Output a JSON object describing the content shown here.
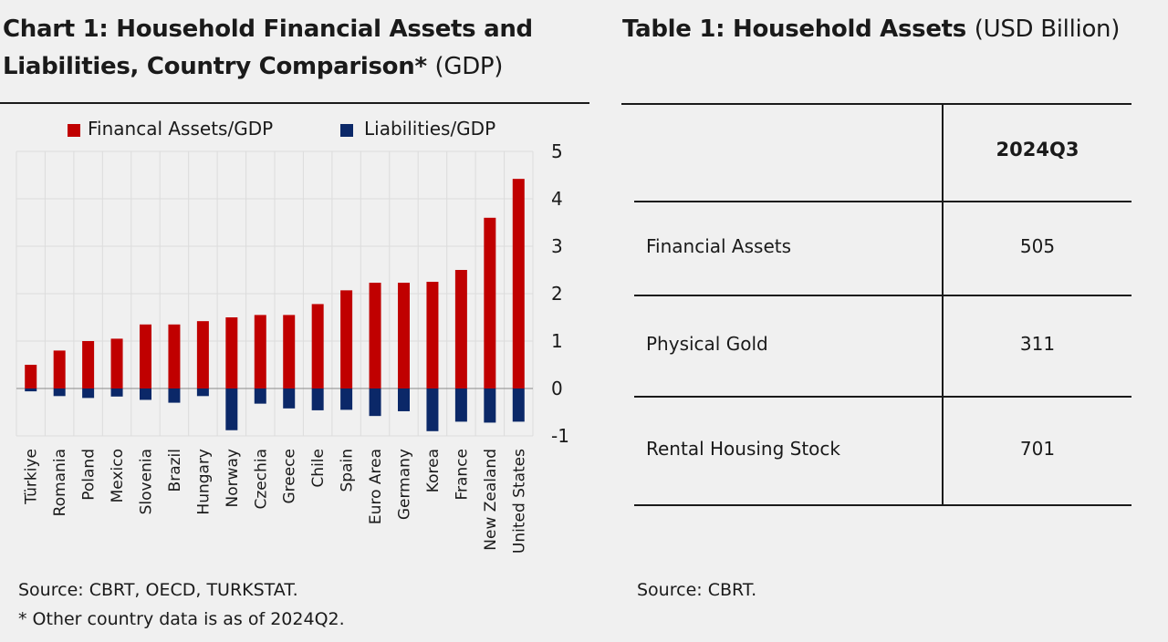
{
  "chart_title": {
    "bold": "Chart 1: Household Financial Assets and",
    "bold2": "Liabilities, Country Comparison*",
    "unit": "(GDP)"
  },
  "table_title": {
    "bold": "Table 1: Household Assets",
    "unit": "(USD Billion)"
  },
  "colors": {
    "assets": "#c00000",
    "liabilities": "#0b2868",
    "grid": "#dcdcdc"
  },
  "chart_data": {
    "type": "bar",
    "title": "Chart 1: Household Financial Assets and Liabilities, Country Comparison* (GDP)",
    "categories": [
      "Türkiye",
      "Romania",
      "Poland",
      "Mexico",
      "Slovenia",
      "Brazil",
      "Hungary",
      "Norway",
      "Czechia",
      "Greece",
      "Chile",
      "Spain",
      "Euro Area",
      "Germany",
      "Korea",
      "France",
      "New Zealand",
      "United States"
    ],
    "series": [
      {
        "name": "Financal Assets/GDP",
        "values": [
          0.5,
          0.8,
          1.0,
          1.05,
          1.35,
          1.35,
          1.42,
          1.5,
          1.55,
          1.55,
          1.78,
          2.07,
          2.23,
          2.23,
          2.25,
          2.5,
          3.6,
          4.42
        ]
      },
      {
        "name": "Liabilities/GDP",
        "values": [
          -0.06,
          -0.16,
          -0.2,
          -0.17,
          -0.24,
          -0.3,
          -0.16,
          -0.88,
          -0.32,
          -0.42,
          -0.46,
          -0.45,
          -0.58,
          -0.48,
          -0.9,
          -0.7,
          -0.72,
          -0.7
        ]
      }
    ],
    "ylim": [
      -1,
      5
    ],
    "yticks": [
      "5",
      "4",
      "3",
      "2",
      "1",
      "0",
      "-1"
    ],
    "ytick_values": [
      5,
      4,
      3,
      2,
      1,
      0,
      -1
    ],
    "legend": [
      "Financal Assets/GDP",
      "Liabilities/GDP"
    ]
  },
  "table": {
    "header": "2024Q3",
    "rows": [
      {
        "label": "Financial Assets",
        "value": "505"
      },
      {
        "label": "Physical Gold",
        "value": "311"
      },
      {
        "label": "Rental Housing Stock",
        "value": "701"
      }
    ]
  },
  "notes": {
    "chart_source": "Source: CBRT, OECD, TURKSTAT.",
    "chart_footnote": "* Other country data is as of 2024Q2.",
    "table_source": "Source: CBRT."
  }
}
